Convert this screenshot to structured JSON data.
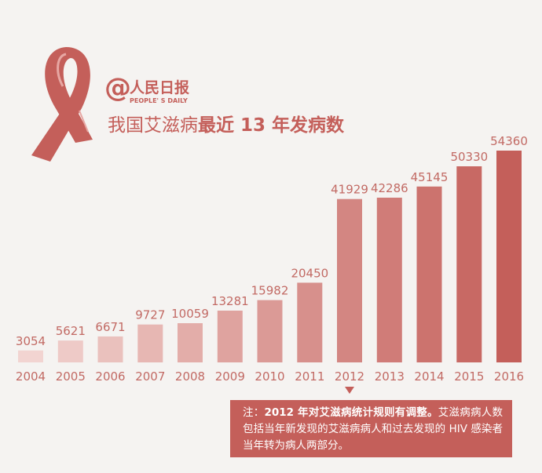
{
  "brand": {
    "name_cn": "人民日报",
    "name_en": "PEOPLE' S DAILY",
    "at_symbol": "@"
  },
  "title": {
    "prefix": "我国艾滋病",
    "suffix": "最近 13 年发病数"
  },
  "note": {
    "label": "注：",
    "bold": "2012 年对艾滋病统计规则有调整。",
    "text": "艾滋病病人数包括当年新发现的艾滋病病人和过去发现的 HIV 感染者当年转为病人两部分。"
  },
  "colors": {
    "accent": "#c45f5a",
    "bar_light": "#f2d4d1",
    "bar_dark": "#c45f5a",
    "label": "#c26a64",
    "background": "#f5f3f1"
  },
  "icons": [
    "red-ribbon-icon",
    "down-triangle-icon"
  ],
  "chart_data": {
    "type": "bar",
    "title": "我国艾滋病最近 13 年发病数",
    "categories": [
      "2004",
      "2005",
      "2006",
      "2007",
      "2008",
      "2009",
      "2010",
      "2011",
      "2012",
      "2013",
      "2014",
      "2015",
      "2016"
    ],
    "values": [
      3054,
      5621,
      6671,
      9727,
      10059,
      13281,
      15982,
      20450,
      41929,
      42286,
      45145,
      50330,
      54360
    ],
    "annotation": {
      "category": "2012",
      "marker": "down-triangle"
    }
  }
}
